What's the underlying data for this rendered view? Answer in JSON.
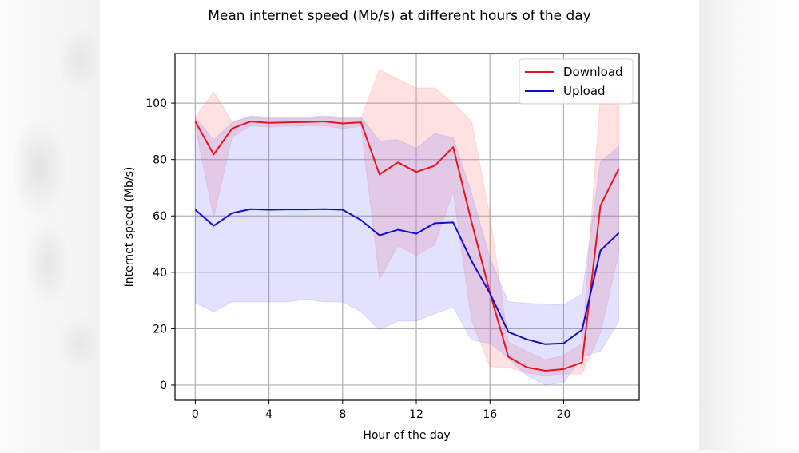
{
  "chart_data": {
    "type": "line",
    "title": "Mean internet speed (Mb/s) at different hours of the day",
    "xlabel": "Hour of the day",
    "ylabel": "Internet speed (Mb/s)",
    "x": [
      0,
      1,
      2,
      3,
      4,
      5,
      6,
      7,
      8,
      9,
      10,
      11,
      12,
      13,
      14,
      15,
      16,
      17,
      18,
      19,
      20,
      21,
      22,
      23
    ],
    "xticks": [
      0,
      4,
      8,
      12,
      16,
      20
    ],
    "yticks": [
      0,
      20,
      40,
      60,
      80,
      100
    ],
    "xlim": [
      -1.1,
      24.1
    ],
    "ylim": [
      -5.4,
      117.6
    ],
    "grid": true,
    "legend_position": "upper right",
    "series": [
      {
        "name": "Download",
        "color": "#e8141c",
        "band_color": "rgba(255,120,120,0.22)",
        "values": [
          93.5,
          81.8,
          91.0,
          93.5,
          93.0,
          93.2,
          93.3,
          93.5,
          92.8,
          93.2,
          74.7,
          79.0,
          75.6,
          77.8,
          84.4,
          57.9,
          32.7,
          10.0,
          6.3,
          5.1,
          5.7,
          8.0,
          63.7,
          76.8
        ],
        "upper": [
          95.0,
          104.0,
          93.5,
          95.0,
          94.5,
          94.5,
          94.5,
          95.0,
          94.5,
          94.5,
          112.0,
          108.5,
          105.4,
          105.4,
          100.0,
          93.5,
          60.0,
          15.3,
          12.0,
          9.0,
          10.5,
          14.8,
          103.0,
          105.7
        ],
        "lower": [
          92.0,
          59.4,
          88.0,
          92.0,
          91.5,
          91.8,
          92.0,
          92.0,
          91.0,
          91.8,
          37.5,
          49.4,
          46.0,
          49.7,
          68.7,
          23.0,
          6.5,
          6.3,
          4.3,
          3.4,
          4.0,
          4.0,
          18.5,
          47.0
        ]
      },
      {
        "name": "Upload",
        "color": "#1010cc",
        "band_color": "rgba(110,110,255,0.20)",
        "values": [
          62.2,
          56.5,
          61.0,
          62.4,
          62.2,
          62.3,
          62.3,
          62.4,
          62.2,
          58.5,
          53.1,
          55.1,
          53.7,
          57.4,
          57.7,
          44.0,
          32.5,
          18.8,
          16.2,
          14.5,
          14.8,
          19.6,
          47.7,
          54.0
        ],
        "upper": [
          95.0,
          87.0,
          93.0,
          95.5,
          95.0,
          95.0,
          95.0,
          95.5,
          95.0,
          95.0,
          86.6,
          87.0,
          84.0,
          89.2,
          87.8,
          68.0,
          45.0,
          29.5,
          29.0,
          28.7,
          28.4,
          32.4,
          79.2,
          84.7
        ],
        "lower": [
          29.2,
          26.0,
          29.5,
          29.5,
          29.5,
          29.5,
          30.4,
          29.5,
          29.5,
          26.0,
          19.6,
          22.7,
          22.7,
          25.3,
          27.6,
          16.0,
          14.8,
          9.7,
          3.4,
          0.0,
          0.8,
          10.0,
          12.0,
          22.7
        ]
      }
    ]
  }
}
